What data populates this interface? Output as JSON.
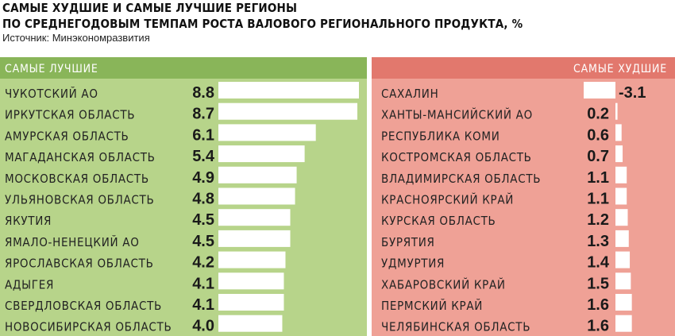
{
  "title": {
    "line1": "САМЫЕ ХУДШИЕ И САМЫЕ ЛУЧШИЕ РЕГИОНЫ",
    "line2": "ПО СРЕДНЕГОДОВЫМ ТЕМПАМ РОСТА ВАЛОВОГО РЕГИОНАЛЬНОГО ПРОДУКТА, %"
  },
  "source": "Источник: Минэкономразвития",
  "colors": {
    "best_panel": "#b7d48a",
    "best_header": "#89b559",
    "worst_panel": "#efa196",
    "worst_header": "#e2786d",
    "bar": "#ffffff"
  },
  "chart_data": [
    {
      "type": "bar",
      "title": "САМЫЕ ЛУЧШИЕ",
      "categories": [
        "ЧУКОТСКИЙ АО",
        "ИРКУТСКАЯ ОБЛАСТЬ",
        "АМУРСКАЯ ОБЛАСТЬ",
        "МАГАДАНСКАЯ ОБЛАСТЬ",
        "МОСКОВСКАЯ ОБЛАСТЬ",
        "УЛЬЯНОВСКАЯ ОБЛАСТЬ",
        "ЯКУТИЯ",
        "ЯМАЛО-НЕНЕЦКИЙ АО",
        "ЯРОСЛАВСКАЯ ОБЛАСТЬ",
        "АДЫГЕЯ",
        "СВЕРДЛОВСКАЯ ОБЛАСТЬ",
        "НОВОСИБИРСКАЯ ОБЛАСТЬ"
      ],
      "values": [
        8.8,
        8.7,
        6.1,
        5.4,
        4.9,
        4.8,
        4.5,
        4.5,
        4.2,
        4.1,
        4.1,
        4.0
      ],
      "value_labels": [
        "8.8",
        "8.7",
        "6.1",
        "5.4",
        "4.9",
        "4.8",
        "4.5",
        "4.5",
        "4.2",
        "4.1",
        "4.1",
        "4.0"
      ],
      "orientation": "horizontal",
      "xlim": [
        0,
        8.8
      ]
    },
    {
      "type": "bar",
      "title": "САМЫЕ ХУДШИЕ",
      "categories": [
        "САХАЛИН",
        "ХАНТЫ-МАНСИЙСКИЙ АО",
        "РЕСПУБЛИКА КОМИ",
        "КОСТРОМСКАЯ ОБЛАСТЬ",
        "ВЛАДИМИРСКАЯ ОБЛАСТЬ",
        "КРАСНОЯРСКИЙ КРАЙ",
        "КУРСКАЯ ОБЛАСТЬ",
        "БУРЯТИЯ",
        "УДМУРТИЯ",
        "ХАБАРОВСКИЙ КРАЙ",
        "ПЕРМСКИЙ КРАЙ",
        "ЧЕЛЯБИНСКАЯ ОБЛАСТЬ"
      ],
      "values": [
        -3.1,
        0.2,
        0.6,
        0.7,
        1.1,
        1.1,
        1.2,
        1.3,
        1.4,
        1.5,
        1.6,
        1.6
      ],
      "value_labels": [
        "-3.1",
        "0.2",
        "0.6",
        "0.7",
        "1.1",
        "1.1",
        "1.2",
        "1.3",
        "1.4",
        "1.5",
        "1.6",
        "1.6"
      ],
      "orientation": "horizontal",
      "xlim": [
        -3.1,
        1.6
      ]
    }
  ]
}
